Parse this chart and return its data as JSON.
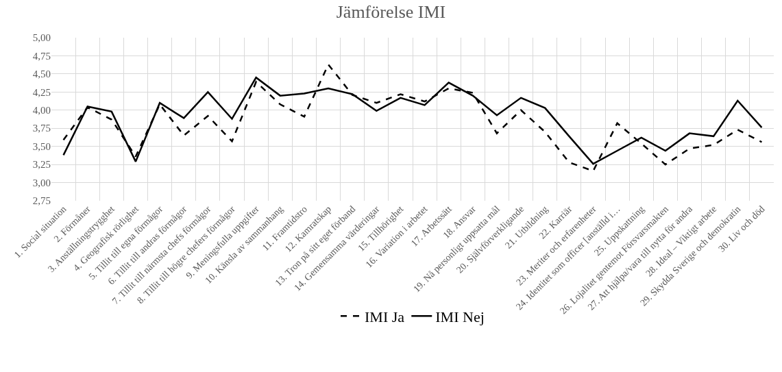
{
  "chart_data": {
    "type": "line",
    "title": "Jämförelse IMI",
    "categories": [
      "1. Social situation",
      "2. Förmåner",
      "3. Anställningstrygghet",
      "4. Geografisk rörlighet",
      "5. Tillit till egna förmågor",
      "6. Tillit till andras förmågor",
      "7. Tillit till närmsta chefs förmågor",
      "8. Tillit till högre chefers förmågor",
      "9. Meningsfulla uppgifter",
      "10. Känsla av sammanhang",
      "11. Framtidstro",
      "12. Kamratskap",
      "13. Tron på sitt eget förband",
      "14. Gemensamma värderingar",
      "15. Tillhörighet",
      "16. Variation i arbetet",
      "17. Arbetssätt",
      "18. Ansvar",
      "19. Nå personligt uppsatta mål",
      "20. Självförverkligande",
      "21. Utbildning",
      "22. Karriär",
      "23. Meriter och erfarenheter",
      "24. Identitet som officer [anställd i…",
      "25. Uppskattning",
      "26. Lojalitet gentemot Försvarsmakten",
      "27. Att hjälpa/vara till nytta för andra",
      "28. Ideal – Viktigt arbete",
      "29. Skydda Sverige och demokratin",
      "30. Liv och död"
    ],
    "series": [
      {
        "name": "IMI Ja",
        "color": "#000000",
        "line_style": "dashed",
        "values": [
          3.59,
          4.04,
          3.87,
          3.36,
          4.08,
          3.65,
          3.92,
          3.57,
          4.39,
          4.08,
          3.91,
          4.63,
          4.21,
          4.1,
          4.22,
          4.12,
          4.3,
          4.24,
          3.68,
          4.0,
          3.7,
          3.28,
          3.16,
          3.82,
          3.54,
          3.25,
          3.47,
          3.52,
          3.73,
          3.56
        ]
      },
      {
        "name": "IMI Nej",
        "color": "#000000",
        "line_style": "solid",
        "values": [
          3.38,
          4.05,
          3.98,
          3.29,
          4.1,
          3.89,
          4.25,
          3.88,
          4.45,
          4.2,
          4.23,
          4.3,
          4.22,
          3.99,
          4.17,
          4.07,
          4.38,
          4.2,
          3.93,
          4.17,
          4.03,
          3.64,
          3.26,
          3.44,
          3.62,
          3.44,
          3.68,
          3.64,
          4.13,
          3.76
        ]
      }
    ],
    "ylim": [
      2.75,
      5.0
    ],
    "yticks": [
      {
        "value": 2.75,
        "label": "2,75"
      },
      {
        "value": 3.0,
        "label": "3,00"
      },
      {
        "value": 3.25,
        "label": "3,25"
      },
      {
        "value": 3.5,
        "label": "3,50"
      },
      {
        "value": 3.75,
        "label": "3,75"
      },
      {
        "value": 4.0,
        "label": "4,00"
      },
      {
        "value": 4.25,
        "label": "4,25"
      },
      {
        "value": 4.5,
        "label": "4,50"
      },
      {
        "value": 4.75,
        "label": "4,75"
      },
      {
        "value": 5.0,
        "label": "5,00"
      }
    ],
    "grid": true,
    "legend": "bottom",
    "marker": "none"
  }
}
